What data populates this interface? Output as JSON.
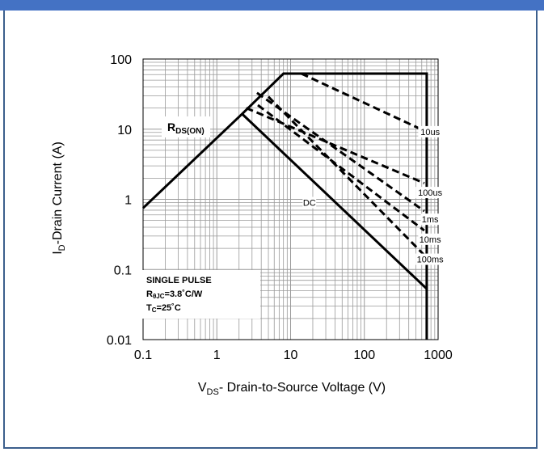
{
  "colors": {
    "header": "#4472c4",
    "frame": "#3c5f8c",
    "ink": "#000000",
    "grid": "#9a9a9a"
  },
  "chart_data": {
    "type": "line",
    "title": "",
    "xlabel": "V",
    "xlabel_sub": "DS",
    "xlabel_rest": "- Drain-to-Source Voltage (V)",
    "ylabel": "I",
    "ylabel_sub": "D",
    "ylabel_rest": "-Drain Current (A)",
    "x_scale": "log",
    "y_scale": "log",
    "xlim": [
      0.1,
      1000
    ],
    "ylim": [
      0.01,
      100
    ],
    "x_ticks": [
      "0.1",
      "1",
      "10",
      "100",
      "1000"
    ],
    "y_ticks": [
      "100",
      "10",
      "1",
      "0.1",
      "0.01"
    ],
    "x_tick_values": [
      0.1,
      1,
      10,
      100,
      1000
    ],
    "y_tick_values": [
      100,
      10,
      1,
      0.1,
      0.01
    ],
    "grid": true,
    "series": [
      {
        "name": "",
        "style": "solid",
        "points": [
          [
            0.1,
            0.75
          ],
          [
            2.2,
            16.5
          ],
          [
            8,
            62
          ],
          [
            700,
            62
          ],
          [
            700,
            0.01
          ]
        ]
      },
      {
        "name": "",
        "style": "solid",
        "points": [
          [
            2.2,
            16.5
          ],
          [
            700,
            0.053
          ]
        ]
      },
      {
        "name": "",
        "style": "dashed",
        "points": [
          [
            14,
            62
          ],
          [
            650,
            9.5
          ]
        ]
      },
      {
        "name": "",
        "style": "dashed",
        "points": [
          [
            2.5,
            20
          ],
          [
            650,
            1.7
          ]
        ]
      },
      {
        "name": "",
        "style": "dashed",
        "points": [
          [
            3.5,
            33
          ],
          [
            650,
            0.68
          ]
        ]
      },
      {
        "name": "",
        "style": "dashed",
        "points": [
          [
            3.6,
            22
          ],
          [
            650,
            0.36
          ]
        ]
      },
      {
        "name": "",
        "style": "dashed",
        "points": [
          [
            5,
            29
          ],
          [
            650,
            0.16
          ]
        ]
      }
    ],
    "annotations": [
      {
        "text": "10us",
        "x": 780,
        "y": 9.2
      },
      {
        "text": "100us",
        "x": 780,
        "y": 1.25
      },
      {
        "text": "1ms",
        "x": 780,
        "y": 0.52
      },
      {
        "text": "10ms",
        "x": 780,
        "y": 0.27
      },
      {
        "text": "100ms",
        "x": 780,
        "y": 0.14
      },
      {
        "text": "DC",
        "x": 18,
        "y": 0.9
      }
    ],
    "boxes": {
      "rds": {
        "main": "R",
        "sub": "DS(ON)"
      },
      "pulse": {
        "title": "SINGLE PULSE",
        "r_main": "R",
        "r_sub": "θJC",
        "r_rest": "=3.8˚C/W",
        "t_main": "T",
        "t_sub": "C",
        "t_rest": "=25˚C"
      }
    }
  }
}
